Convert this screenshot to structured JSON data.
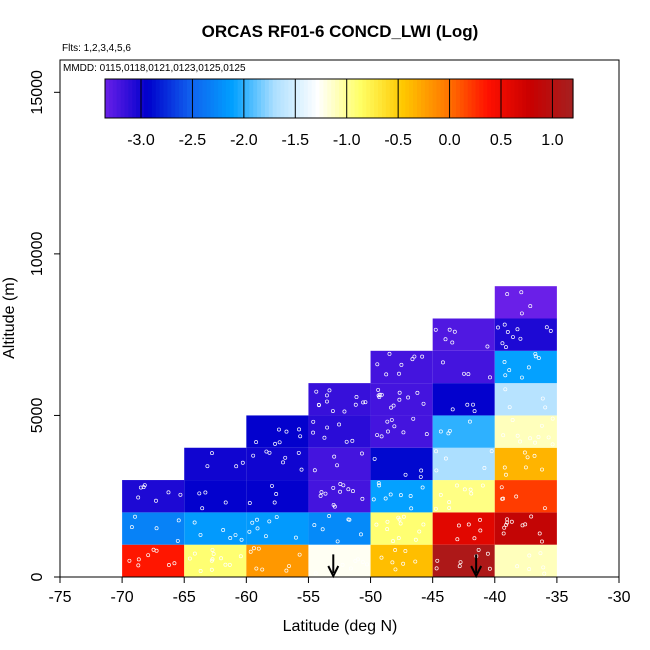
{
  "chart_data": {
    "type": "heatmap",
    "title": "ORCAS RF01-6 CONCD_LWI (Log)",
    "subtitle_flights": "Flts: 1,2,3,4,5,6",
    "subtitle_dates": "MMDD: 0115,0118,0121,0123,0125,0125",
    "xlabel": "Latitude (deg N)",
    "ylabel": "Altitude (m)",
    "xlim": [
      -75,
      -30
    ],
    "ylim": [
      0,
      16000
    ],
    "xticks": [
      -75,
      -70,
      -65,
      -60,
      -55,
      -50,
      -45,
      -40,
      -35,
      -30
    ],
    "xtick_labels": [
      "-75",
      "-70",
      "-65",
      "-60",
      "-55",
      "-50",
      "-45",
      "-40",
      "-35",
      "-30"
    ],
    "yticks": [
      0,
      5000,
      10000,
      15000
    ],
    "ytick_labels": [
      "0",
      "5000",
      "10000",
      "15000"
    ],
    "colorbar": {
      "ticks": [
        -3.0,
        -2.5,
        -2.0,
        -1.5,
        -1.0,
        -0.5,
        0.0,
        0.5,
        1.0
      ],
      "tick_labels": [
        "-3.0",
        "-2.5",
        "-2.0",
        "-1.5",
        "-1.0",
        "-0.5",
        "0.0",
        "0.5",
        "1.0"
      ],
      "range": [
        -3.35,
        1.2
      ],
      "stops": [
        "#6a1fe8",
        "#0000cc",
        "#1060ee",
        "#00a0ff",
        "#aee0ff",
        "#ffffff",
        "#ffff66",
        "#ffc800",
        "#ff7a00",
        "#ff1000",
        "#c80000",
        "#a52020"
      ]
    },
    "bin_width_deg": 5,
    "bin_height_m": 1000,
    "cells": [
      {
        "lat": -70,
        "alt": 0,
        "value": 0.35
      },
      {
        "lat": -70,
        "alt": 1000,
        "value": -2.3
      },
      {
        "lat": -70,
        "alt": 2000,
        "value": -3.05
      },
      {
        "lat": -65,
        "alt": 0,
        "value": -0.9
      },
      {
        "lat": -65,
        "alt": 1000,
        "value": -2.15
      },
      {
        "lat": -65,
        "alt": 2000,
        "value": -2.95
      },
      {
        "lat": -65,
        "alt": 3000,
        "value": -3.0
      },
      {
        "lat": -60,
        "alt": 0,
        "value": -0.2
      },
      {
        "lat": -60,
        "alt": 1000,
        "value": -2.15
      },
      {
        "lat": -60,
        "alt": 2000,
        "value": -2.95
      },
      {
        "lat": -60,
        "alt": 3000,
        "value": -3.0
      },
      {
        "lat": -60,
        "alt": 4000,
        "value": -2.95
      },
      {
        "lat": -55,
        "alt": 0,
        "value": -1.25
      },
      {
        "lat": -55,
        "alt": 1000,
        "value": -2.25
      },
      {
        "lat": -55,
        "alt": 2000,
        "value": -3.2
      },
      {
        "lat": -55,
        "alt": 3000,
        "value": -3.2
      },
      {
        "lat": -55,
        "alt": 4000,
        "value": -3.1
      },
      {
        "lat": -55,
        "alt": 5000,
        "value": -3.15
      },
      {
        "lat": -50,
        "alt": 0,
        "value": -0.4
      },
      {
        "lat": -50,
        "alt": 1000,
        "value": -0.9
      },
      {
        "lat": -50,
        "alt": 2000,
        "value": -2.1
      },
      {
        "lat": -50,
        "alt": 3000,
        "value": -2.9
      },
      {
        "lat": -50,
        "alt": 4000,
        "value": -3.2
      },
      {
        "lat": -50,
        "alt": 5000,
        "value": -3.2
      },
      {
        "lat": -50,
        "alt": 6000,
        "value": -3.2
      },
      {
        "lat": -45,
        "alt": 0,
        "value": 1.1
      },
      {
        "lat": -45,
        "alt": 1000,
        "value": 0.6
      },
      {
        "lat": -45,
        "alt": 2000,
        "value": -0.95
      },
      {
        "lat": -45,
        "alt": 3000,
        "value": -1.7
      },
      {
        "lat": -45,
        "alt": 4000,
        "value": -2.0
      },
      {
        "lat": -45,
        "alt": 5000,
        "value": -2.95
      },
      {
        "lat": -45,
        "alt": 6000,
        "value": -3.2
      },
      {
        "lat": -45,
        "alt": 7000,
        "value": -3.25
      },
      {
        "lat": -40,
        "alt": 0,
        "value": -1.1
      },
      {
        "lat": -40,
        "alt": 1000,
        "value": 0.85
      },
      {
        "lat": -40,
        "alt": 2000,
        "value": 0.2
      },
      {
        "lat": -40,
        "alt": 3000,
        "value": -0.35
      },
      {
        "lat": -40,
        "alt": 4000,
        "value": -1.1
      },
      {
        "lat": -40,
        "alt": 5000,
        "value": -1.65
      },
      {
        "lat": -40,
        "alt": 6000,
        "value": -2.1
      },
      {
        "lat": -40,
        "alt": 7000,
        "value": -3.05
      },
      {
        "lat": -40,
        "alt": 8000,
        "value": -3.35
      }
    ],
    "arrows": [
      {
        "lat": -53.0,
        "alt": 700
      },
      {
        "lat": -41.5,
        "alt": 700
      }
    ]
  }
}
